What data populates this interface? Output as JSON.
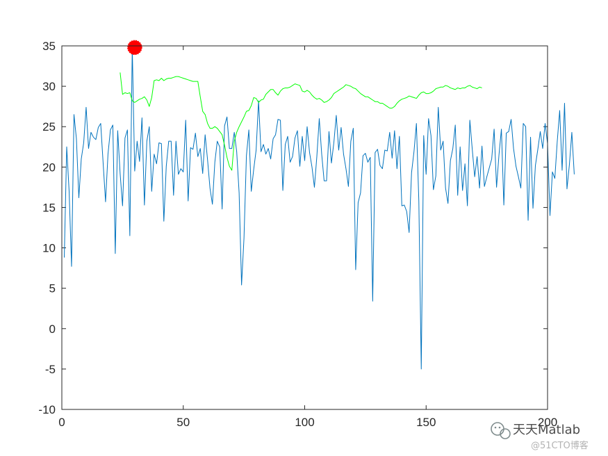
{
  "chart_data": {
    "type": "line",
    "xlim": [
      0,
      200
    ],
    "ylim": [
      -10,
      35
    ],
    "xticks": [
      0,
      50,
      100,
      150,
      200
    ],
    "yticks": [
      -10,
      -5,
      0,
      5,
      10,
      15,
      20,
      25,
      30,
      35
    ],
    "grid": false,
    "series": [
      {
        "color": "#0072BD",
        "x_start": 1,
        "values": [
          8.8,
          22.5,
          17.0,
          7.7,
          26.5,
          23.5,
          16.2,
          21.0,
          23.0,
          27.4,
          22.3,
          24.3,
          23.7,
          23.4,
          24.9,
          25.4,
          20.5,
          15.7,
          21.6,
          24.6,
          25.2,
          9.3,
          24.5,
          19.2,
          15.2,
          23.6,
          24.6,
          11.5,
          34.8,
          19.5,
          23.2,
          20.7,
          26.1,
          15.3,
          23.2,
          25.0,
          17.0,
          21.6,
          20.4,
          23.0,
          22.9,
          13.3,
          20.1,
          23.2,
          23.2,
          16.5,
          23.2,
          19.1,
          19.8,
          19.4,
          25.8,
          15.8,
          22.4,
          22.2,
          24.2,
          21.3,
          22.3,
          19.2,
          24.0,
          20.9,
          17.4,
          15.4,
          20.6,
          23.2,
          22.5,
          14.8,
          25.1,
          26.2,
          22.3,
          22.3,
          24.3,
          21.9,
          16.8,
          5.4,
          11.2,
          21.4,
          24.6,
          17.0,
          19.7,
          22.1,
          28.2,
          21.9,
          22.8,
          21.6,
          22.3,
          21.0,
          23.5,
          24.0,
          25.9,
          25.8,
          17.1,
          22.8,
          23.8,
          20.6,
          21.3,
          23.6,
          24.5,
          20.1,
          23.8,
          20.8,
          25.0,
          21.8,
          20.0,
          17.5,
          21.3,
          26.0,
          21.6,
          18.3,
          18.3,
          24.4,
          20.5,
          23.0,
          26.4,
          22.1,
          24.9,
          21.6,
          19.8,
          17.6,
          23.2,
          24.8,
          7.3,
          15.6,
          16.8,
          21.4,
          21.7,
          20.6,
          21.2,
          3.4,
          21.8,
          22.2,
          20.2,
          19.8,
          22.1,
          22.0,
          24.3,
          21.1,
          24.5,
          19.8,
          23.8,
          15.2,
          15.3,
          14.5,
          11.9,
          19.3,
          21.9,
          25.4,
          15.8,
          -5.0,
          23.9,
          19.1,
          26.0,
          23.9,
          17.2,
          18.9,
          27.4,
          22.1,
          23.2,
          17.4,
          15.5,
          20.8,
          22.3,
          25.2,
          16.5,
          22.5,
          17.1,
          20.4,
          15.2,
          25.8,
          22.2,
          18.8,
          21.3,
          17.4,
          22.6,
          17.6,
          18.8,
          19.9,
          21.0,
          24.7,
          17.5,
          21.5,
          24.7,
          15.3,
          24.2,
          24.4,
          25.9,
          22.3,
          20.1,
          18.8,
          17.4,
          25.4,
          25.0,
          13.4,
          23.7,
          14.9,
          20.2,
          22.2,
          24.4,
          22.3,
          25.4,
          22.9,
          14.0,
          19.4,
          18.6,
          23.2,
          27.0,
          19.6,
          27.9,
          17.3,
          20.3,
          24.3,
          19.1
        ]
      },
      {
        "color": "#00FF00",
        "x_start": 24,
        "values": [
          31.7,
          29.0,
          29.2,
          29.1,
          29.2,
          28.2,
          28.0,
          28.2,
          28.4,
          28.5,
          28.7,
          28.3,
          27.5,
          28.6,
          30.7,
          30.8,
          30.7,
          31.0,
          30.7,
          30.9,
          31.0,
          31.0,
          31.1,
          31.2,
          31.2,
          31.1,
          31.0,
          30.9,
          30.8,
          30.7,
          30.6,
          30.6,
          30.6,
          28.7,
          26.9,
          26.5,
          25.4,
          24.8,
          24.8,
          25.0,
          24.8,
          24.4,
          24.0,
          22.7,
          21.2,
          20.1,
          19.6,
          23.2,
          24.3,
          25.0,
          25.6,
          26.2,
          26.9,
          27.0,
          27.6,
          28.6,
          28.5,
          28.0,
          28.3,
          28.4,
          29.0,
          29.3,
          29.6,
          29.6,
          29.2,
          28.9,
          29.4,
          29.7,
          29.8,
          29.8,
          29.9,
          30.1,
          30.3,
          30.2,
          30.1,
          29.4,
          29.3,
          29.5,
          29.3,
          28.9,
          28.6,
          28.4,
          28.5,
          28.3,
          28.0,
          28.1,
          28.3,
          28.6,
          29.1,
          29.3,
          29.5,
          29.7,
          29.9,
          30.2,
          30.1,
          30.0,
          29.8,
          29.7,
          29.4,
          29.1,
          28.9,
          28.7,
          28.7,
          28.5,
          28.3,
          28.1,
          28.1,
          27.9,
          27.9,
          27.7,
          27.5,
          27.3,
          27.3,
          27.5,
          27.9,
          28.2,
          28.4,
          28.5,
          28.6,
          28.8,
          28.7,
          28.6,
          28.5,
          28.9,
          29.2,
          29.3,
          29.1,
          29.1,
          29.2,
          29.4,
          29.7,
          29.8,
          29.9,
          29.9,
          30.1,
          30.0,
          29.8,
          29.7,
          29.6,
          29.8,
          29.7,
          29.8,
          29.8,
          30.0,
          30.1,
          29.9,
          29.8,
          29.7,
          29.9,
          29.8
        ]
      }
    ],
    "markers": [
      {
        "x": 30,
        "y": 34.8,
        "color": "#FF0000"
      }
    ]
  },
  "watermark": {
    "name": "天天Matlab",
    "source": "@51CTO博客"
  }
}
